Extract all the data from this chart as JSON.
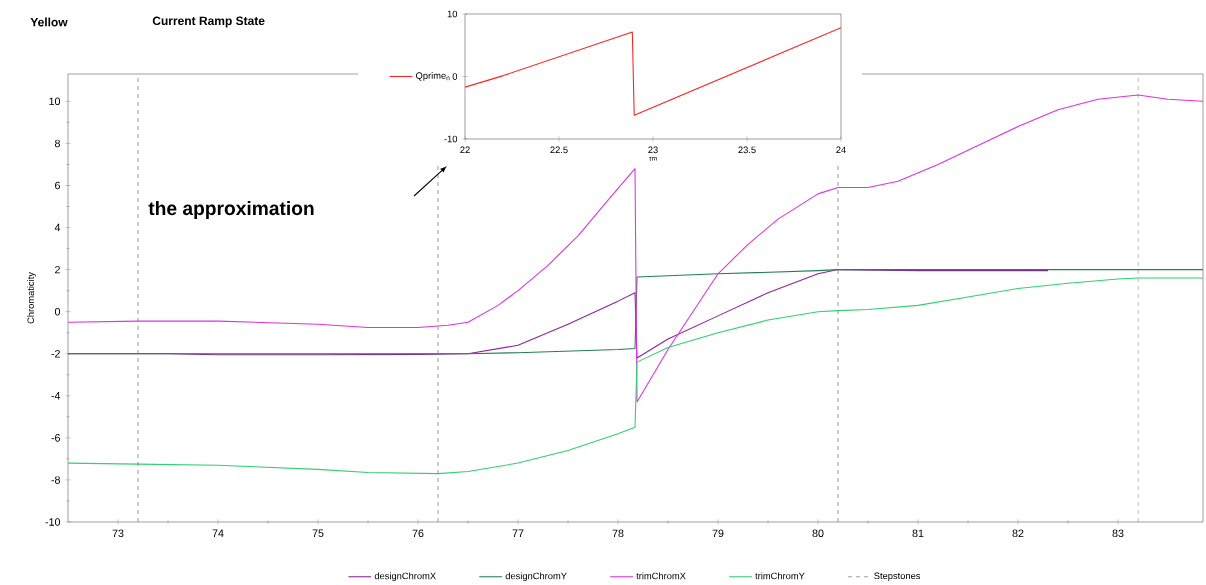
{
  "chart_data": [
    {
      "type": "line",
      "ylabel": "Chromaticity",
      "xlim": [
        72.5,
        83.85
      ],
      "ylim": [
        -10,
        11.3
      ],
      "xticks": [
        73,
        74,
        75,
        76,
        77,
        78,
        79,
        80,
        81,
        82,
        83
      ],
      "yticks": [
        -10,
        -8,
        -6,
        -4,
        -2,
        0,
        2,
        4,
        6,
        8,
        10
      ],
      "legend": "bottom",
      "annotations": [
        "Yellow",
        "Current Ramp State",
        "the approximation"
      ],
      "series": [
        {
          "name": "designChromX",
          "color": "#9020a0",
          "x": [
            72.5,
            73.5,
            74,
            75,
            76,
            76.5,
            77,
            77.5,
            78,
            78.17,
            78.19,
            78.5,
            79,
            79.5,
            80,
            80.2,
            81,
            82.3
          ],
          "values": [
            -2,
            -2,
            -2.05,
            -2.05,
            -2.03,
            -2,
            -1.6,
            -0.6,
            0.5,
            0.9,
            -2.2,
            -1.3,
            -0.2,
            0.9,
            1.8,
            2,
            1.95,
            1.95
          ]
        },
        {
          "name": "designChromY",
          "color": "#208050",
          "x": [
            72.5,
            76.5,
            77,
            78,
            78.17,
            78.19,
            79,
            80,
            80.2,
            83.85
          ],
          "values": [
            -2,
            -2,
            -1.95,
            -1.8,
            -1.75,
            1.65,
            1.8,
            1.95,
            2,
            2
          ]
        },
        {
          "name": "trimChromX",
          "color": "#e030e0",
          "x": [
            72.5,
            73.2,
            74,
            75,
            75.5,
            76,
            76.3,
            76.5,
            76.8,
            77,
            77.3,
            77.6,
            77.9,
            78.17,
            78.19,
            78.5,
            79,
            79.3,
            79.6,
            80,
            80.2,
            80.5,
            80.8,
            81.2,
            81.6,
            82,
            82.4,
            82.8,
            83.2,
            83.5,
            83.85
          ],
          "values": [
            -0.5,
            -0.45,
            -0.45,
            -0.6,
            -0.75,
            -0.75,
            -0.65,
            -0.5,
            0.3,
            1,
            2.2,
            3.6,
            5.3,
            6.8,
            -4.3,
            -1.8,
            1.8,
            3.2,
            4.4,
            5.6,
            5.9,
            5.9,
            6.2,
            7,
            7.9,
            8.8,
            9.6,
            10.1,
            10.3,
            10.1,
            10
          ]
        },
        {
          "name": "trimChromY",
          "color": "#30d070",
          "x": [
            72.5,
            73.2,
            74,
            75,
            75.5,
            76.2,
            76.5,
            77,
            77.5,
            78,
            78.17,
            78.19,
            78.5,
            79,
            79.5,
            80,
            80.2,
            80.5,
            81,
            81.5,
            82,
            82.5,
            83,
            83.2,
            83.85
          ],
          "values": [
            -7.2,
            -7.25,
            -7.3,
            -7.5,
            -7.65,
            -7.7,
            -7.6,
            -7.2,
            -6.6,
            -5.8,
            -5.5,
            -2.4,
            -1.7,
            -1,
            -0.4,
            0,
            0.05,
            0.1,
            0.3,
            0.7,
            1.1,
            1.35,
            1.55,
            1.6,
            1.6
          ]
        }
      ],
      "ref_lines": [
        {
          "axis": "x",
          "value": 73.2,
          "label": "Stepstones",
          "color": "#808080",
          "line_style": "dashed"
        },
        {
          "axis": "x",
          "value": 76.2,
          "color": "#808080",
          "line_style": "dashed"
        },
        {
          "axis": "x",
          "value": 80.2,
          "color": "#808080",
          "line_style": "dashed"
        },
        {
          "axis": "x",
          "value": 83.2,
          "color": "#808080",
          "line_style": "dashed"
        }
      ]
    },
    {
      "type": "line",
      "xlabel": "τm",
      "xlim": [
        22,
        24
      ],
      "ylim": [
        -10,
        10
      ],
      "xticks": [
        22,
        22.5,
        23,
        23.5,
        24
      ],
      "yticks": [
        -10,
        0,
        10
      ],
      "legend": "left",
      "series": [
        {
          "name": "Qprime$_{n}$",
          "color": "#ff2020",
          "x": [
            22,
            22.2,
            22.89,
            22.9,
            24
          ],
          "values": [
            -1.7,
            0.1,
            7.1,
            -6.2,
            7.8
          ]
        }
      ]
    }
  ]
}
